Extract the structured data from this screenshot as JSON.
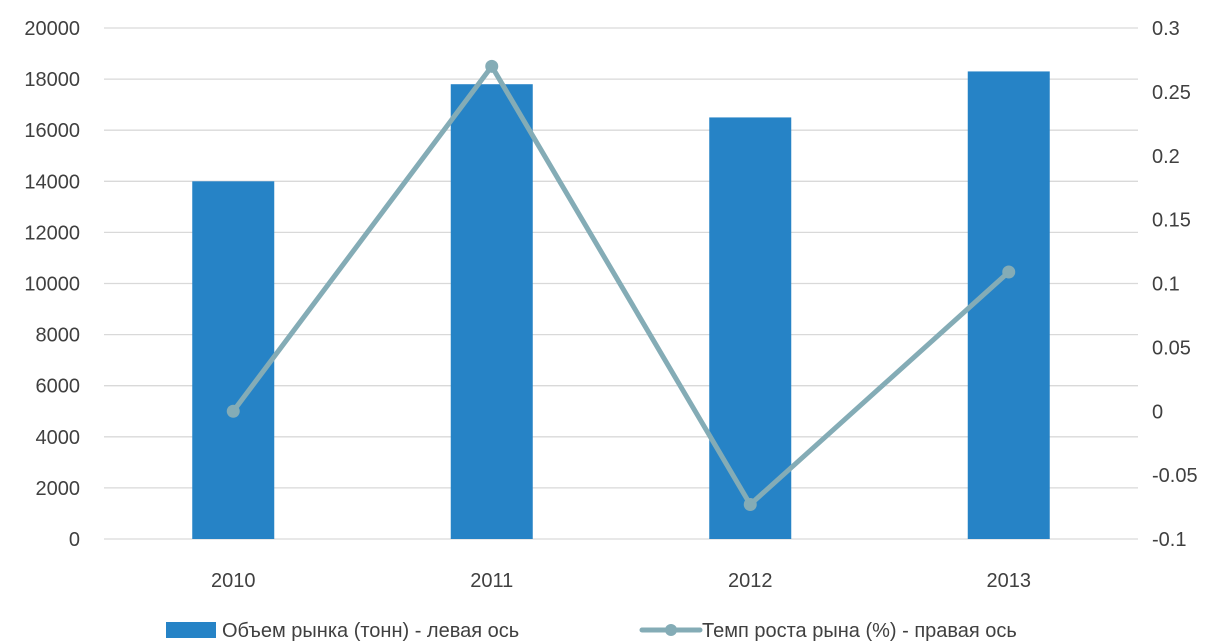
{
  "chart_data": {
    "type": "bar",
    "categories": [
      "2010",
      "2011",
      "2012",
      "2013"
    ],
    "series": [
      {
        "name": "Объем рынка (тонн) - левая ось",
        "type": "bar",
        "axis": "left",
        "color": "#2683c6",
        "values": [
          14000,
          17800,
          16500,
          18300
        ]
      },
      {
        "name": "Темп роста рына (%) - правая ось",
        "type": "line",
        "axis": "right",
        "color": "#84acb6",
        "values": [
          0,
          0.27,
          -0.073,
          0.109
        ]
      }
    ],
    "y_left": {
      "lim": [
        0,
        20000
      ],
      "ticks": [
        "0",
        "2000",
        "4000",
        "6000",
        "8000",
        "10000",
        "12000",
        "14000",
        "16000",
        "18000",
        "20000"
      ]
    },
    "y_right": {
      "lim": [
        -0.1,
        0.3
      ],
      "ticks": [
        "-0.1",
        "-0.05",
        "0",
        "0.05",
        "0.1",
        "0.15",
        "0.2",
        "0.25",
        "0.3"
      ]
    },
    "grid": true,
    "legend": "bottom",
    "colors": {
      "gridline": "#d9d9d9",
      "text": "#404040"
    }
  }
}
